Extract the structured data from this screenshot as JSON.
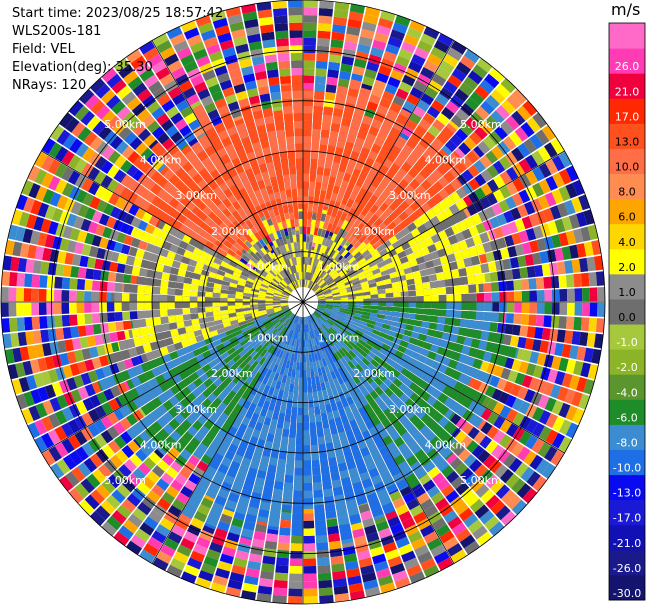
{
  "header": {
    "start_time": "Start time: 2023/08/25 18:57:42",
    "instrument": "WLS200s-181",
    "field": "Field: VEL",
    "elevation": "Elevation(deg): 35.30",
    "nrays": "NRays: 120"
  },
  "colorbar": {
    "unit": "m/s",
    "bins": [
      {
        "label": "-30.0",
        "color": "#14146e"
      },
      {
        "label": "-26.0",
        "color": "#1a1a8c"
      },
      {
        "label": "-21.0",
        "color": "#1010b4"
      },
      {
        "label": "-17.0",
        "color": "#1a1ad6"
      },
      {
        "label": "-13.0",
        "color": "#0a0af0"
      },
      {
        "label": "-10.0",
        "color": "#1e6ee6"
      },
      {
        "label": "-8.0",
        "color": "#3c8cd2"
      },
      {
        "label": "-6.0",
        "color": "#1e8c28"
      },
      {
        "label": "-4.0",
        "color": "#5a962d"
      },
      {
        "label": "-2.0",
        "color": "#8cb428"
      },
      {
        "label": "-1.0",
        "color": "#a5c83c"
      },
      {
        "label": "0.0",
        "color": "#6e6e6e"
      },
      {
        "label": "1.0",
        "color": "#8c8c8c"
      },
      {
        "label": "2.0",
        "color": "#ffff00"
      },
      {
        "label": "4.0",
        "color": "#ffd700"
      },
      {
        "label": "6.0",
        "color": "#ffa500"
      },
      {
        "label": "8.0",
        "color": "#ff8c50"
      },
      {
        "label": "10.0",
        "color": "#ff6e46"
      },
      {
        "label": "13.0",
        "color": "#ff501e"
      },
      {
        "label": "17.0",
        "color": "#ff2800"
      },
      {
        "label": "21.0",
        "color": "#f0003c"
      },
      {
        "label": "26.0",
        "color": "#ff3cb4"
      },
      {
        "label": "",
        "color": "#ff69c8"
      }
    ]
  },
  "chart_data": {
    "type": "ppi",
    "field": "VEL",
    "units": "m/s",
    "elevation_deg": 35.3,
    "nrays": 120,
    "max_range_km": 6.0,
    "range_rings_km": [
      1,
      2,
      3,
      4,
      5,
      6
    ],
    "range_labels": [
      "1.00km",
      "2.00km",
      "3.00km",
      "4.00km",
      "5.00km"
    ],
    "spokes_deg": [
      0,
      30,
      60,
      90,
      120,
      150,
      180,
      210,
      240,
      270,
      300,
      330
    ],
    "velocity_sectors": [
      {
        "azimuth_from_deg": 300,
        "azimuth_to_deg": 55,
        "range_from_km": 1.5,
        "range_to_km": 4.2,
        "velocity_ms": 13.0
      },
      {
        "azimuth_from_deg": 250,
        "azimuth_to_deg": 300,
        "range_from_km": 0.3,
        "range_to_km": 3.6,
        "velocity_ms": 2.0
      },
      {
        "azimuth_from_deg": 55,
        "azimuth_to_deg": 90,
        "range_from_km": 0.3,
        "range_to_km": 3.8,
        "velocity_ms": 2.0
      },
      {
        "azimuth_from_deg": 300,
        "azimuth_to_deg": 55,
        "range_from_km": 0.3,
        "range_to_km": 1.5,
        "velocity_ms": 2.0
      },
      {
        "azimuth_from_deg": 90,
        "azimuth_to_deg": 150,
        "range_from_km": 0.3,
        "range_to_km": 4.0,
        "velocity_ms": -6.0
      },
      {
        "azimuth_from_deg": 150,
        "azimuth_to_deg": 210,
        "range_from_km": 0.3,
        "range_to_km": 4.5,
        "velocity_ms": -8.0
      },
      {
        "azimuth_from_deg": 210,
        "azimuth_to_deg": 250,
        "range_from_km": 0.3,
        "range_to_km": 4.0,
        "velocity_ms": -6.0
      }
    ]
  }
}
